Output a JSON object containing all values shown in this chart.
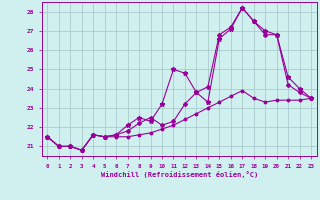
{
  "background_color": "#cff0ee",
  "grid_color": "#aacccc",
  "line_color": "#990099",
  "xlim": [
    -0.5,
    23.5
  ],
  "ylim": [
    20.5,
    28.5
  ],
  "yticks": [
    21,
    22,
    23,
    24,
    25,
    26,
    27,
    28
  ],
  "xticks": [
    0,
    1,
    2,
    3,
    4,
    5,
    6,
    7,
    8,
    9,
    10,
    11,
    12,
    13,
    14,
    15,
    16,
    17,
    18,
    19,
    20,
    21,
    22,
    23
  ],
  "xlabel": "Windchill (Refroidissement éolien,°C)",
  "series1_x": [
    0,
    1,
    2,
    3,
    4,
    5,
    6,
    7,
    8,
    9,
    10,
    11,
    12,
    13,
    14,
    15,
    16,
    17,
    18,
    19,
    20,
    21,
    22,
    23
  ],
  "series1_y": [
    21.5,
    21.0,
    21.0,
    20.8,
    21.6,
    21.5,
    21.5,
    21.5,
    21.6,
    21.7,
    21.9,
    22.1,
    22.4,
    22.7,
    23.0,
    23.3,
    23.6,
    23.9,
    23.5,
    23.3,
    23.4,
    23.4,
    23.4,
    23.5
  ],
  "series2_x": [
    0,
    1,
    2,
    3,
    4,
    5,
    6,
    7,
    8,
    9,
    10,
    11,
    12,
    13,
    14,
    15,
    16,
    17,
    18,
    19,
    20,
    21,
    22,
    23
  ],
  "series2_y": [
    21.5,
    21.0,
    21.0,
    20.8,
    21.6,
    21.5,
    21.6,
    21.8,
    22.2,
    22.5,
    22.1,
    22.3,
    23.2,
    23.8,
    24.1,
    26.8,
    27.2,
    28.2,
    27.5,
    26.8,
    26.8,
    24.2,
    23.8,
    23.5
  ],
  "series3_x": [
    0,
    1,
    2,
    3,
    4,
    5,
    6,
    7,
    8,
    9,
    10,
    11,
    12,
    13,
    14,
    15,
    16,
    17,
    18,
    19,
    20,
    21,
    22,
    23
  ],
  "series3_y": [
    21.5,
    21.0,
    21.0,
    20.8,
    21.6,
    21.5,
    21.6,
    22.1,
    22.5,
    22.3,
    23.2,
    25.0,
    24.8,
    23.8,
    23.3,
    26.6,
    27.1,
    28.2,
    27.5,
    27.0,
    26.8,
    24.6,
    24.0,
    23.5
  ],
  "marker1": "o",
  "marker2": "D",
  "marker3": "*",
  "lw": 0.8,
  "ms1": 1.8,
  "ms2": 2.0,
  "ms3": 3.5
}
